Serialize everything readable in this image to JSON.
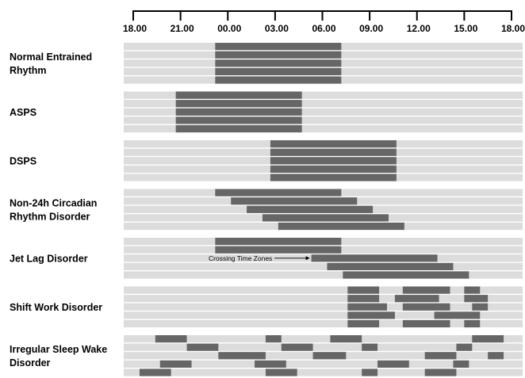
{
  "chart_data": {
    "type": "bar",
    "title": "",
    "xlabel": "",
    "ylabel": "",
    "x_axis": {
      "position": "top",
      "range_hours": [
        18,
        42
      ],
      "ticks": [
        {
          "value": 18,
          "label": "18.00"
        },
        {
          "value": 21,
          "label": "21.00"
        },
        {
          "value": 24,
          "label": "00.00"
        },
        {
          "value": 27,
          "label": "03.00"
        },
        {
          "value": 30,
          "label": "06.00"
        },
        {
          "value": 33,
          "label": "09.00"
        },
        {
          "value": 36,
          "label": "12.00"
        },
        {
          "value": 39,
          "label": "15.00"
        },
        {
          "value": 42,
          "label": "18.00"
        }
      ]
    },
    "colors": {
      "background_bar": "#dcdcdc",
      "sleep_bar": "#666666",
      "axis": "#000000"
    },
    "groups": [
      {
        "label": [
          "Normal Entrained",
          "Rhythm"
        ],
        "days": [
          [
            [
              23.2,
              31.2
            ]
          ],
          [
            [
              23.2,
              31.2
            ]
          ],
          [
            [
              23.2,
              31.2
            ]
          ],
          [
            [
              23.2,
              31.2
            ]
          ],
          [
            [
              23.2,
              31.2
            ]
          ]
        ]
      },
      {
        "label": [
          "ASPS"
        ],
        "days": [
          [
            [
              20.7,
              28.7
            ]
          ],
          [
            [
              20.7,
              28.7
            ]
          ],
          [
            [
              20.7,
              28.7
            ]
          ],
          [
            [
              20.7,
              28.7
            ]
          ],
          [
            [
              20.7,
              28.7
            ]
          ]
        ]
      },
      {
        "label": [
          "DSPS"
        ],
        "days": [
          [
            [
              26.7,
              34.7
            ]
          ],
          [
            [
              26.7,
              34.7
            ]
          ],
          [
            [
              26.7,
              34.7
            ]
          ],
          [
            [
              26.7,
              34.7
            ]
          ],
          [
            [
              26.7,
              34.7
            ]
          ]
        ]
      },
      {
        "label": [
          "Non-24h Circadian",
          "Rhythm Disorder"
        ],
        "days": [
          [
            [
              23.2,
              31.2
            ]
          ],
          [
            [
              24.2,
              32.2
            ]
          ],
          [
            [
              25.2,
              33.2
            ]
          ],
          [
            [
              26.2,
              34.2
            ]
          ],
          [
            [
              27.2,
              35.2
            ]
          ]
        ]
      },
      {
        "label": [
          "Jet Lag Disorder"
        ],
        "days": [
          [
            [
              23.2,
              31.2
            ]
          ],
          [
            [
              23.2,
              31.2
            ]
          ],
          [
            [
              29.3,
              37.3
            ]
          ],
          [
            [
              30.3,
              38.3
            ]
          ],
          [
            [
              31.3,
              39.3
            ]
          ]
        ],
        "annotation": {
          "text": "Crossing Time Zones",
          "day": 2
        }
      },
      {
        "label": [
          "Shift Work Disorder"
        ],
        "days": [
          [
            [
              31.6,
              33.6
            ],
            [
              35.1,
              38.1
            ],
            [
              39.0,
              40.0
            ]
          ],
          [
            [
              31.6,
              33.6
            ],
            [
              34.6,
              37.4
            ],
            [
              39.0,
              40.5
            ]
          ],
          [
            [
              31.6,
              34.1
            ],
            [
              35.1,
              38.1
            ],
            [
              39.5,
              40.5
            ]
          ],
          [
            [
              31.6,
              34.6
            ],
            [
              37.1,
              40.0
            ]
          ],
          [
            [
              31.6,
              33.6
            ],
            [
              35.1,
              38.1
            ],
            [
              39.0,
              40.0
            ]
          ]
        ]
      },
      {
        "label": [
          "Irregular Sleep Wake",
          "Disorder"
        ],
        "days": [
          [
            [
              19.4,
              21.4
            ],
            [
              26.4,
              27.4
            ],
            [
              30.5,
              32.5
            ],
            [
              39.5,
              41.5
            ]
          ],
          [
            [
              21.4,
              23.4
            ],
            [
              27.4,
              29.4
            ],
            [
              32.5,
              33.5
            ],
            [
              38.5,
              39.5
            ]
          ],
          [
            [
              23.4,
              26.4
            ],
            [
              29.4,
              31.5
            ],
            [
              36.5,
              38.5
            ],
            [
              40.5,
              41.5
            ]
          ],
          [
            [
              19.7,
              21.7
            ],
            [
              25.7,
              27.7
            ],
            [
              33.5,
              35.5
            ],
            [
              38.3,
              39.3
            ]
          ],
          [
            [
              18.4,
              20.4
            ],
            [
              26.4,
              28.4
            ],
            [
              32.5,
              33.5
            ],
            [
              36.5,
              38.5
            ]
          ]
        ]
      }
    ]
  }
}
